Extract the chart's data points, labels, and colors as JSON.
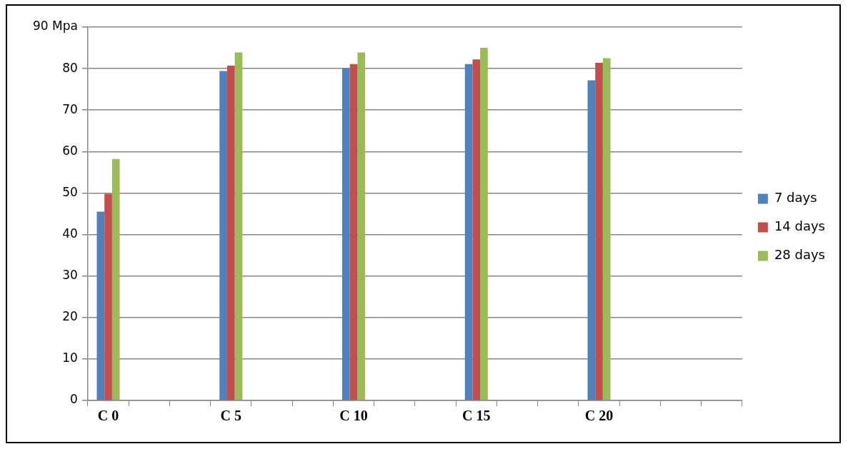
{
  "chart_data": {
    "type": "bar",
    "categories": [
      "C 0",
      null,
      null,
      "C 5",
      null,
      null,
      "C 10",
      null,
      null,
      "C 15",
      null,
      null,
      "C 20",
      null,
      null,
      null
    ],
    "series": [
      {
        "name": "7 days",
        "color": "#4f81bd",
        "values": [
          45.5,
          null,
          null,
          79.4,
          null,
          null,
          80.0,
          null,
          null,
          81.1,
          null,
          null,
          77.2,
          null,
          null,
          null
        ]
      },
      {
        "name": "14 days",
        "color": "#c0504d",
        "values": [
          49.8,
          null,
          null,
          80.7,
          null,
          null,
          81.1,
          null,
          null,
          82.2,
          null,
          null,
          81.4,
          null,
          null,
          null
        ]
      },
      {
        "name": "28 days",
        "color": "#9bbb59",
        "values": [
          58.2,
          null,
          null,
          83.9,
          null,
          null,
          83.9,
          null,
          null,
          85.0,
          null,
          null,
          82.5,
          null,
          null,
          null
        ]
      }
    ],
    "ylim": [
      0,
      90
    ],
    "yticks": [
      0,
      10,
      20,
      30,
      40,
      50,
      60,
      70,
      80,
      {
        "value": 90,
        "label": "90 Mpa"
      }
    ],
    "grid": "y",
    "legend": "right"
  }
}
